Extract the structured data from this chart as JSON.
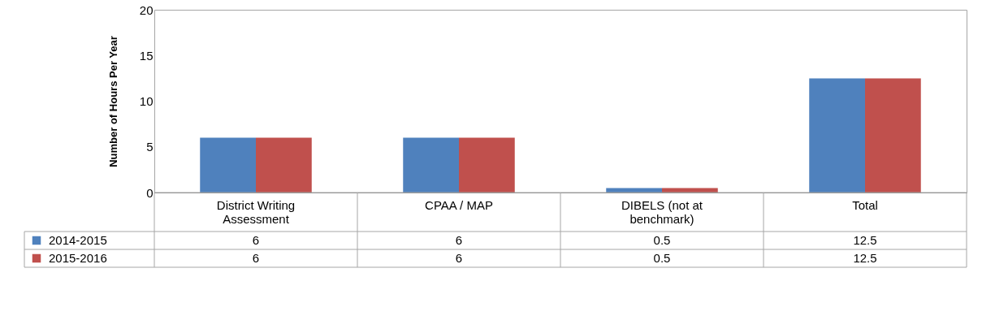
{
  "chart_data": {
    "type": "bar",
    "ylabel": "Number of Hours Per Year",
    "categories": [
      "District Writing Assessment",
      "CPAA / MAP",
      "DIBELS (not at benchmark)",
      "Total"
    ],
    "series": [
      {
        "name": "2014-2015",
        "color": "#4f81bd",
        "values": [
          6,
          6,
          0.5,
          12.5
        ]
      },
      {
        "name": "2015-2016",
        "color": "#c0504d",
        "values": [
          6,
          6,
          0.5,
          12.5
        ]
      }
    ],
    "ylim": [
      0,
      20
    ],
    "yticks": [
      0,
      5,
      10,
      15,
      20
    ],
    "grid": false,
    "legend": "bottom",
    "data_labels": true
  }
}
